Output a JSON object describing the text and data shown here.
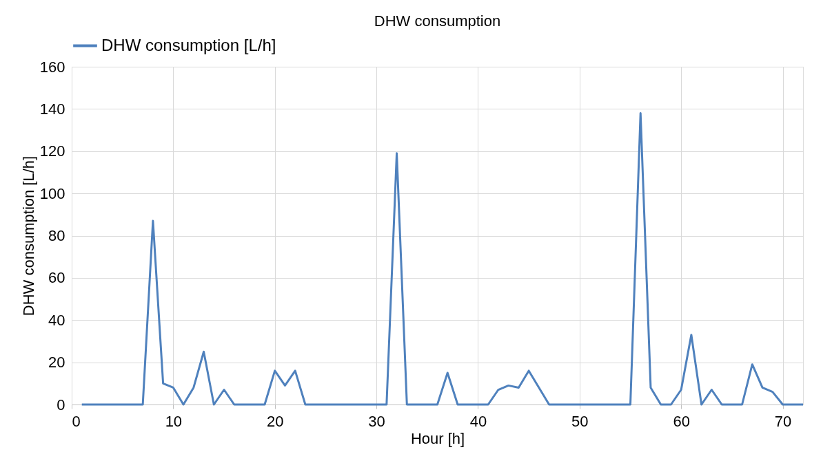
{
  "chart_data": {
    "type": "line",
    "title": "DHW consumption",
    "xlabel": "Hour [h]",
    "ylabel": "DHW consumption [L/h]",
    "x": [
      1,
      2,
      3,
      4,
      5,
      6,
      7,
      8,
      9,
      10,
      11,
      12,
      13,
      14,
      15,
      16,
      17,
      18,
      19,
      20,
      21,
      22,
      23,
      24,
      25,
      26,
      27,
      28,
      29,
      30,
      31,
      32,
      33,
      34,
      35,
      36,
      37,
      38,
      39,
      40,
      41,
      42,
      43,
      44,
      45,
      46,
      47,
      48,
      49,
      50,
      51,
      52,
      53,
      54,
      55,
      56,
      57,
      58,
      59,
      60,
      61,
      62,
      63,
      64,
      65,
      66,
      67,
      68,
      69,
      70,
      71,
      72
    ],
    "series": [
      {
        "name": "DHW consumption [L/h]",
        "color": "#4f81bd",
        "values": [
          0,
          0,
          0,
          0,
          0,
          0,
          0,
          87,
          10,
          8,
          0,
          8,
          25,
          0,
          7,
          0,
          0,
          0,
          0,
          16,
          9,
          16,
          0,
          0,
          0,
          0,
          0,
          0,
          0,
          0,
          0,
          119,
          0,
          0,
          0,
          0,
          15,
          0,
          0,
          0,
          0,
          7,
          9,
          8,
          16,
          8,
          0,
          0,
          0,
          0,
          0,
          0,
          0,
          0,
          0,
          138,
          8,
          0,
          0,
          7,
          33,
          0,
          7,
          0,
          0,
          0,
          19,
          8,
          6,
          0,
          0,
          0
        ]
      }
    ],
    "xlim": [
      0,
      72
    ],
    "xticks": [
      0,
      10,
      20,
      30,
      40,
      50,
      60,
      70
    ],
    "ylim": [
      0,
      160
    ],
    "yticks": [
      0,
      20,
      40,
      60,
      80,
      100,
      120,
      140,
      160
    ],
    "grid": true,
    "legend": "top",
    "marker": "none",
    "line_style": "solid"
  }
}
